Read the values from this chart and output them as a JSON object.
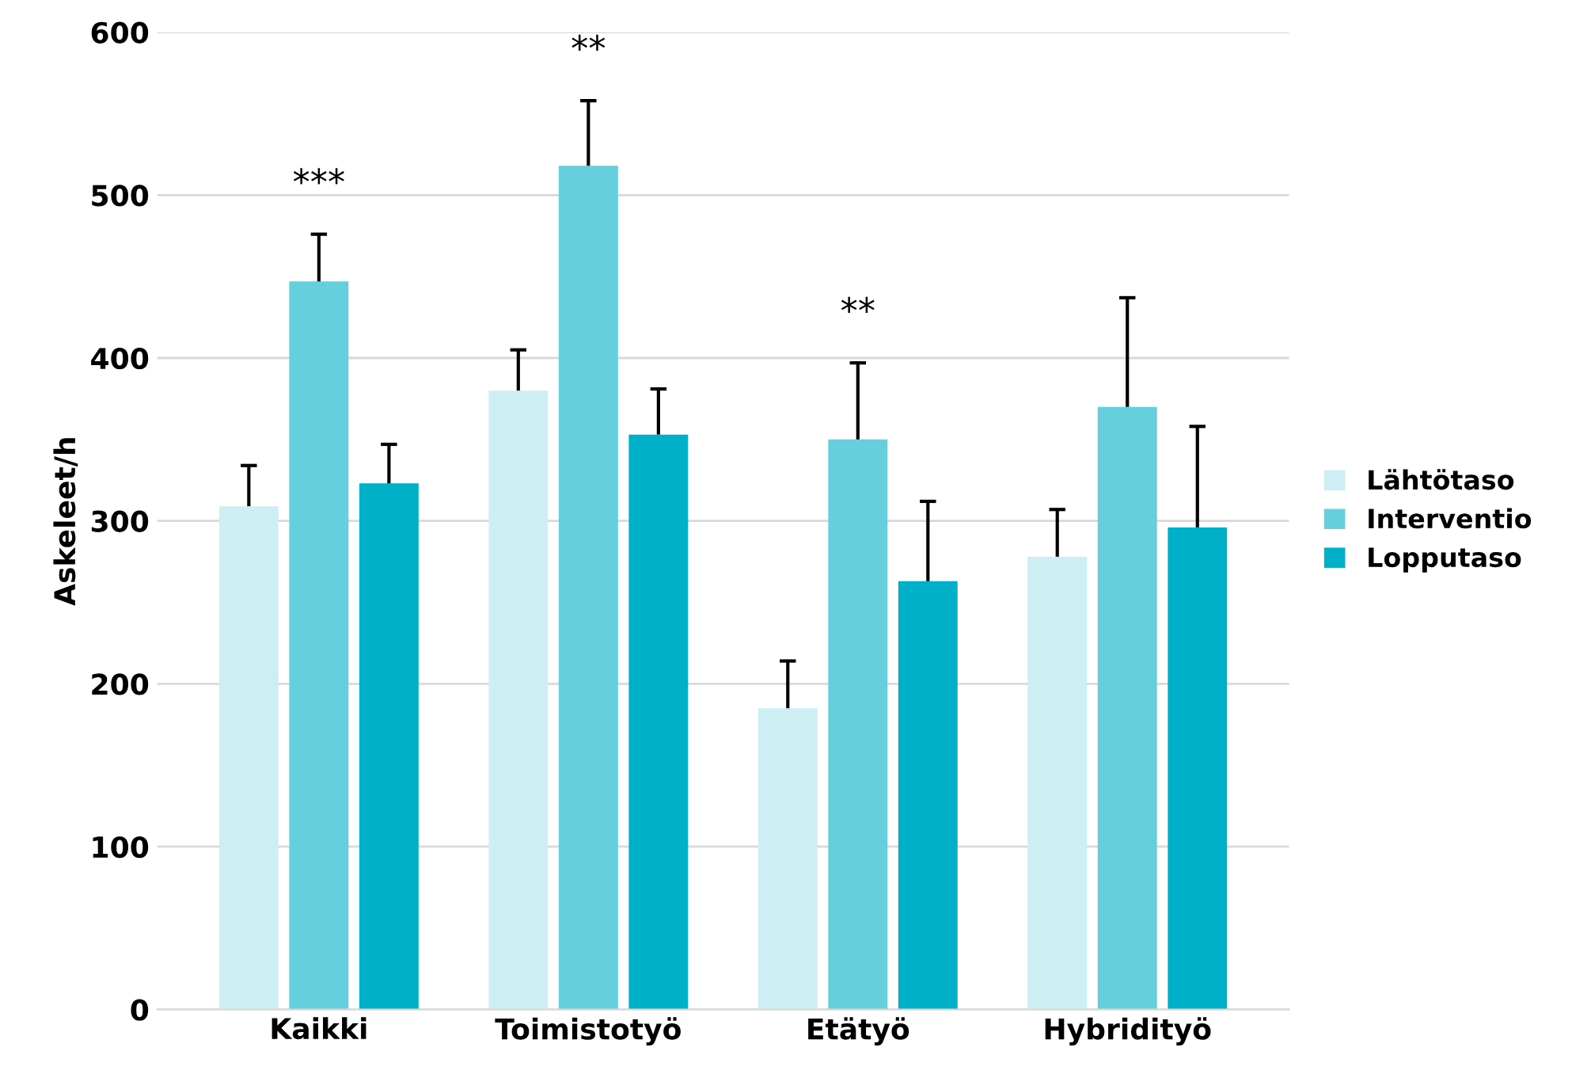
{
  "chart_data": {
    "type": "bar",
    "ylabel": "Askeleet/h",
    "categories": [
      "Kaikki",
      "Toimistotyö",
      "Etätyö",
      "Hybridityö"
    ],
    "series": [
      {
        "name": "Lähtötaso",
        "color": "#cdeef2",
        "values": [
          309,
          380,
          185,
          278
        ],
        "errors": [
          [
            309,
            334
          ],
          [
            380,
            405
          ],
          [
            185,
            214
          ],
          [
            278,
            307
          ]
        ]
      },
      {
        "name": "Interventio",
        "color": "#66cfdd",
        "values": [
          447,
          518,
          350,
          370
        ],
        "errors": [
          [
            447,
            476
          ],
          [
            518,
            558
          ],
          [
            350,
            397
          ],
          [
            370,
            437
          ]
        ]
      },
      {
        "name": "Lopputaso",
        "color": "#00b0c8",
        "values": [
          323,
          353,
          263,
          296
        ],
        "errors": [
          [
            323,
            347
          ],
          [
            353,
            381
          ],
          [
            263,
            312
          ],
          [
            296,
            358
          ]
        ]
      }
    ],
    "ylim": [
      0,
      600
    ],
    "yticks": [
      0,
      100,
      200,
      300,
      400,
      500,
      600
    ],
    "grid": "y",
    "legend": "right",
    "annotations": [
      "***",
      "**",
      "**"
    ]
  }
}
